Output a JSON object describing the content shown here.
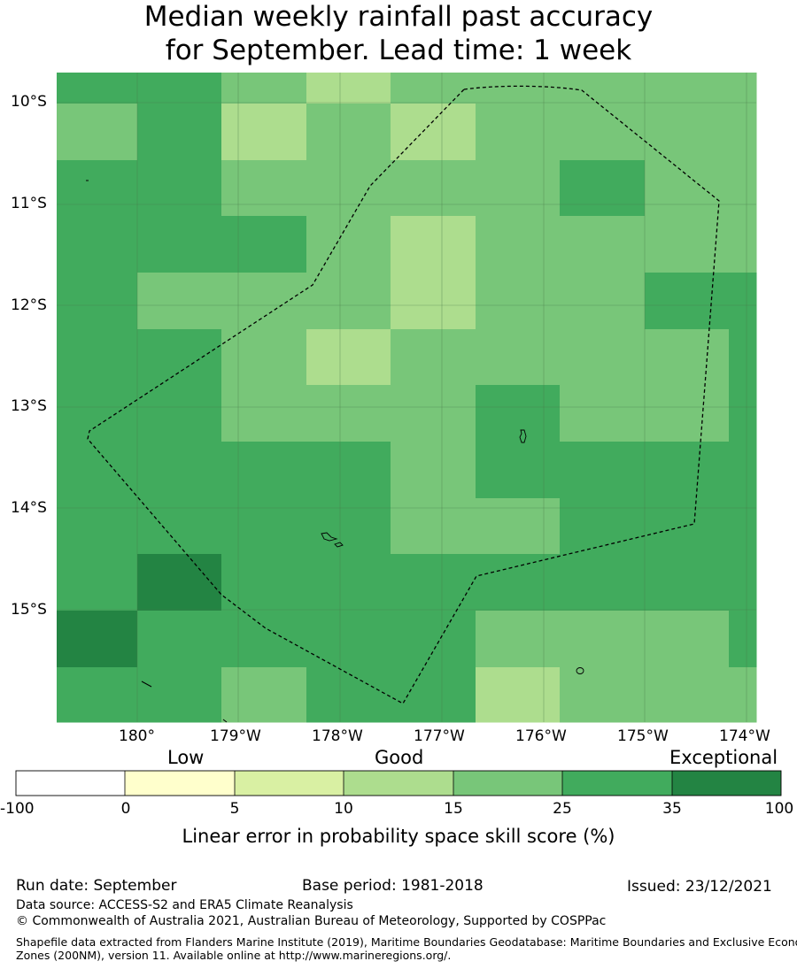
{
  "title": {
    "line1": "Median weekly rainfall past accuracy",
    "line2": "for September. Lead time: 1 week"
  },
  "map": {
    "lat_labels": [
      "10°S",
      "11°S",
      "12°S",
      "13°S",
      "14°S",
      "15°S"
    ],
    "lon_labels": [
      "180°",
      "179°W",
      "178°W",
      "177°W",
      "176°W",
      "175°W",
      "174°W"
    ],
    "skill_grid": [
      [
        25,
        25,
        15,
        10,
        15,
        15,
        15,
        15,
        15
      ],
      [
        15,
        25,
        10,
        15,
        10,
        15,
        15,
        15,
        15
      ],
      [
        25,
        25,
        15,
        15,
        15,
        15,
        25,
        15,
        15
      ],
      [
        25,
        25,
        25,
        15,
        10,
        15,
        15,
        15,
        15
      ],
      [
        25,
        15,
        15,
        15,
        10,
        15,
        15,
        25,
        25
      ],
      [
        25,
        25,
        15,
        10,
        15,
        15,
        15,
        15,
        25
      ],
      [
        25,
        25,
        15,
        15,
        15,
        25,
        15,
        15,
        25
      ],
      [
        25,
        25,
        25,
        25,
        15,
        25,
        25,
        25,
        25
      ],
      [
        25,
        25,
        25,
        25,
        15,
        15,
        25,
        25,
        25
      ],
      [
        25,
        35,
        25,
        25,
        25,
        25,
        25,
        25,
        25
      ],
      [
        35,
        25,
        25,
        25,
        25,
        15,
        15,
        15,
        25
      ],
      [
        25,
        25,
        15,
        25,
        25,
        10,
        15,
        15,
        15
      ]
    ],
    "colors": {
      "land": "#000000",
      "boundary": "#000000",
      "gridline": "#4a7a4a"
    }
  },
  "legend": {
    "categories": [
      "Low",
      "Good",
      "Exceptional"
    ],
    "ticks": [
      "-100",
      "0",
      "5",
      "10",
      "15",
      "25",
      "35",
      "100"
    ],
    "colors": [
      "#ffffff",
      "#ffffcc",
      "#d9f0a3",
      "#addd8e",
      "#78c679",
      "#41ab5d",
      "#238443"
    ],
    "caption": "Linear error in probability space skill score (%)"
  },
  "footer": {
    "run_date": "Run date: September",
    "base_period": "Base period: 1981-2018",
    "issued": "Issued: 23/12/2021",
    "data_source": "Data source: ACCESS-S2 and ERA5 Climate Reanalysis",
    "copyright": "© Commonwealth of Australia 2021, Australian Bureau of Meteorology, Supported by COSPPac",
    "shapefile_line1": "Shapefile data extracted from Flanders Marine Institute (2019), Maritime Boundaries Geodatabase: Maritime Boundaries and Exclusive Economic",
    "shapefile_line2": "Zones (200NM), version 11. Available online at http://www.marineregions.org/."
  }
}
